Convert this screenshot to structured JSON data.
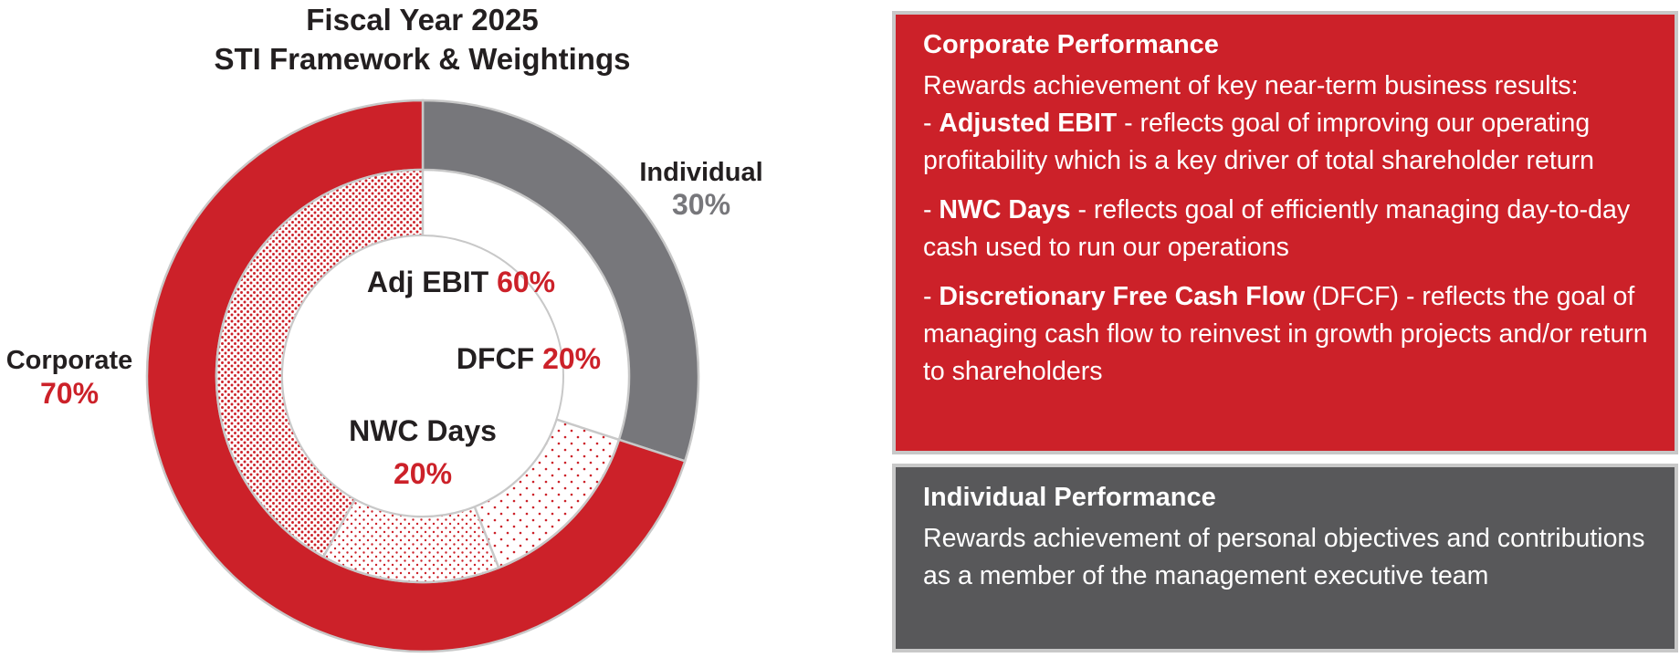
{
  "colors": {
    "red": "#cc2129",
    "gray": "#77777b",
    "dark_gray": "#58585a",
    "text": "#231f20",
    "white": "#ffffff"
  },
  "chart_data": {
    "type": "pie",
    "subtype": "nested-donut",
    "title": "Fiscal Year 2025",
    "subtitle": "STI Framework & Weightings",
    "outer_ring": {
      "slices": [
        {
          "name": "Individual",
          "value": 30,
          "value_label": "30%",
          "color": "#77777b"
        },
        {
          "name": "Corporate",
          "value": 70,
          "value_label": "70%",
          "color": "#cc2129"
        }
      ]
    },
    "inner_ring": {
      "note": "Inner ring subdivides the Corporate component",
      "slices": [
        {
          "name": "DFCF",
          "value": 20,
          "value_label": "20%",
          "pattern": "sparse-dots"
        },
        {
          "name": "NWC Days",
          "value": 20,
          "value_label": "20%",
          "pattern": "medium-dots"
        },
        {
          "name": "Adj EBIT",
          "value": 60,
          "value_label": "60%",
          "pattern": "dense-dots"
        }
      ]
    }
  },
  "panels": {
    "corporate": {
      "title": "Corporate Performance",
      "intro": "Rewards achievement of key near-term business results:",
      "bullets": [
        {
          "dash": "- ",
          "bold": "Adjusted EBIT",
          "pre_text": "",
          "text": " - reflects goal of improving our operating profitability which is a key driver of total shareholder return"
        },
        {
          "dash": "- ",
          "bold": "NWC Days",
          "pre_text": "",
          "text": " - reflects goal of efficiently managing day-to-day cash used to run our operations"
        },
        {
          "dash": "- ",
          "bold": "Discretionary Free Cash Flow",
          "pre_text": " (DFCF)",
          "text": " - reflects the goal of managing cash flow to reinvest in growth projects and/or return to shareholders"
        }
      ]
    },
    "individual": {
      "title": "Individual Performance",
      "body": "Rewards achievement of personal objectives and contributions as a member of the management executive team"
    }
  }
}
